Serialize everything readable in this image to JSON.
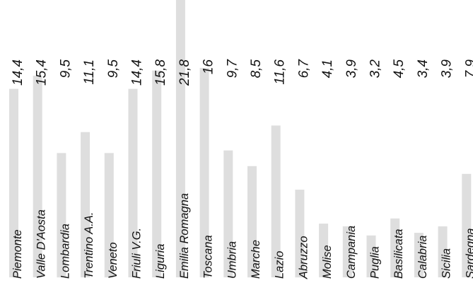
{
  "chart_data": {
    "type": "bar",
    "orientation": "vertical",
    "categories": [
      "Piemonte",
      "Valle D'Aosta",
      "Lombardia",
      "Trentino A.A.",
      "Veneto",
      "Friuli V.G.",
      "Liguria",
      "Emilia Romagna",
      "Toscana",
      "Umbria",
      "Marche",
      "Lazio",
      "Abruzzo",
      "Molise",
      "Campania",
      "Puglia",
      "Basilicata",
      "Calabria",
      "Sicilia",
      "Sardegna"
    ],
    "values": [
      14.4,
      15.4,
      9.5,
      11.1,
      9.5,
      14.4,
      15.8,
      21.8,
      16,
      9.7,
      8.5,
      11.6,
      6.7,
      4.1,
      3.9,
      3.2,
      4.5,
      3.4,
      3.9,
      7.9
    ],
    "value_labels": [
      "14,4",
      "15,4",
      "9,5",
      "11,1",
      "9,5",
      "14,4",
      "15,8",
      "21,8",
      "16",
      "9,7",
      "8,5",
      "11,6",
      "6,7",
      "4,1",
      "3,9",
      "3,2",
      "4,5",
      "3,4",
      "3,9",
      "7,9"
    ],
    "bar_color": "#dedede",
    "ylim": [
      0,
      22
    ],
    "grid": false,
    "legend": "none",
    "title": "",
    "xlabel": "",
    "ylabel": ""
  }
}
